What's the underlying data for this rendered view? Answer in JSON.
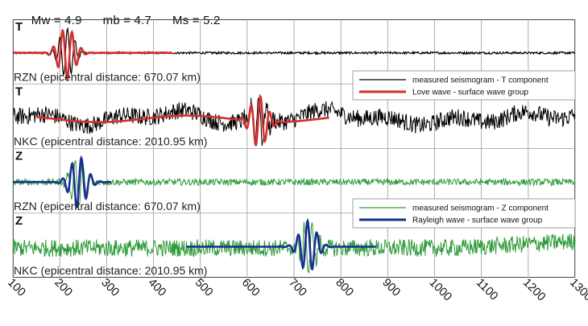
{
  "header": {
    "mw": "Mw = 4.9",
    "mb": "mb = 4.7",
    "ms": "Ms = 5.2"
  },
  "chart_data": {
    "type": "line",
    "title": "",
    "xlabel": "",
    "ylabel": "",
    "xlim": [
      100,
      1300
    ],
    "x_ticks": [
      "100",
      "200",
      "300",
      "400",
      "500",
      "600",
      "700",
      "800",
      "900",
      "1000",
      "1100",
      "1200",
      "1300"
    ],
    "grid": true,
    "panels": [
      {
        "component": "T",
        "station": "RZN (epicentral distance: 670.07 km)",
        "series": [
          {
            "name": "measured seismogram - T component",
            "color": "#000000",
            "x_range": [
              100,
              1300
            ],
            "burst_center": 215,
            "burst_amplitude": 0.9
          },
          {
            "name": "Love wave - surface wave group",
            "color": "#d32f2f",
            "x_range": [
              100,
              440
            ],
            "burst_center": 215,
            "burst_amplitude": 0.95
          }
        ]
      },
      {
        "component": "T",
        "station": "NKC (epicentral distance: 2010.95 km)",
        "series": [
          {
            "name": "measured seismogram - T component",
            "color": "#000000",
            "x_range": [
              100,
              1300
            ],
            "burst_center": 625,
            "burst_amplitude": 0.9
          },
          {
            "name": "Love wave - surface wave group",
            "color": "#d32f2f",
            "x_range": [
              150,
              775
            ],
            "burst_center": 625,
            "burst_amplitude": 0.95
          }
        ]
      },
      {
        "component": "Z",
        "station": "RZN (epicentral distance: 670.07 km)",
        "series": [
          {
            "name": "measured seismogram - Z component",
            "color": "#2e9b3a",
            "x_range": [
              100,
              1300
            ],
            "burst_center": 240,
            "burst_amplitude": 0.9
          },
          {
            "name": "Rayleigh wave - surface wave group",
            "color": "#1a2f8f",
            "x_range": [
              100,
              310
            ],
            "burst_center": 240,
            "burst_amplitude": 0.95
          }
        ]
      },
      {
        "component": "Z",
        "station": "NKC (epicentral distance: 2010.95 km)",
        "series": [
          {
            "name": "measured seismogram - Z component",
            "color": "#2e9b3a",
            "x_range": [
              100,
              1300
            ],
            "burst_center": 730,
            "burst_amplitude": 0.9
          },
          {
            "name": "Rayleigh wave - surface wave group",
            "color": "#1a2f8f",
            "x_range": [
              470,
              875
            ],
            "burst_center": 730,
            "burst_amplitude": 0.95
          }
        ]
      }
    ],
    "legends": [
      {
        "entries": [
          {
            "label": "measured seismogram - T component",
            "color": "#000000"
          },
          {
            "label": "Love wave - surface wave group",
            "color": "#d32f2f"
          }
        ]
      },
      {
        "entries": [
          {
            "label": "measured seismogram - Z component",
            "color": "#2e9b3a"
          },
          {
            "label": "Rayleigh wave - surface wave group",
            "color": "#1a2f8f"
          }
        ]
      }
    ]
  }
}
